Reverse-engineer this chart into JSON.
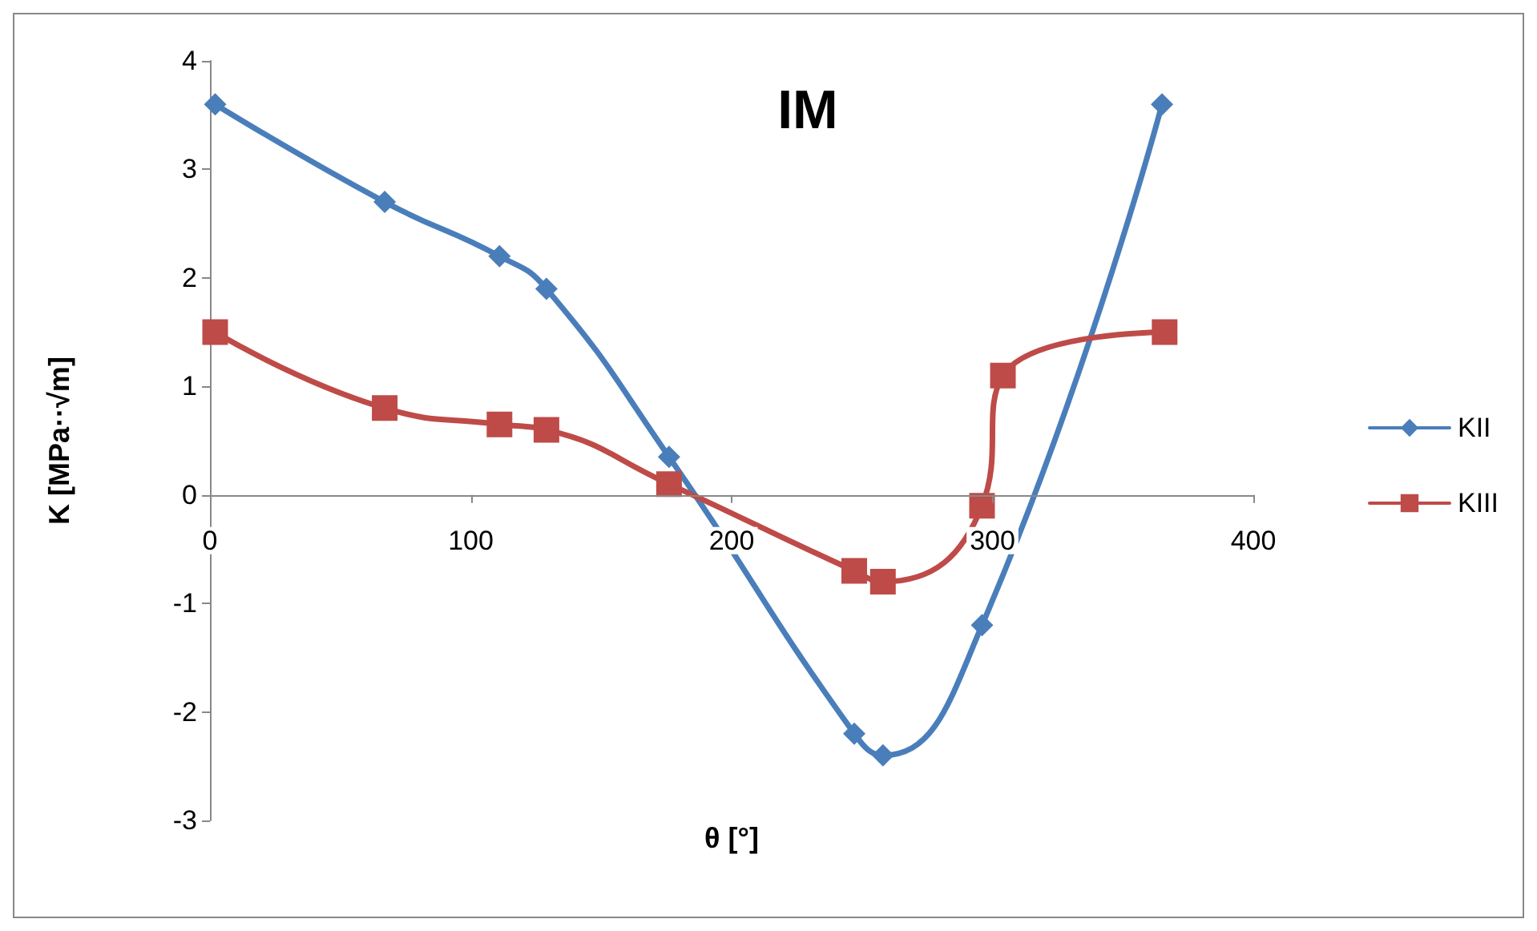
{
  "chart_data": {
    "type": "line",
    "title": "IM",
    "xlabel": "θ [°]",
    "ylabel": "K [MPa··√m]",
    "xlim": [
      0,
      400
    ],
    "xticks": [
      0,
      100,
      200,
      300,
      400
    ],
    "ylim": [
      -3,
      4
    ],
    "yticks": [
      -3,
      -2,
      -1,
      0,
      1,
      2,
      3,
      4
    ],
    "grid": false,
    "legend": "right",
    "line_style": "solid",
    "series": [
      {
        "name": "KII",
        "color": "#4a7ebb",
        "marker": "diamond",
        "x": [
          2,
          67,
          111,
          129,
          176,
          247,
          258,
          296,
          365
        ],
        "values": [
          3.6,
          2.7,
          2.2,
          1.9,
          0.35,
          -2.2,
          -2.4,
          -1.2,
          3.6
        ]
      },
      {
        "name": "KIII",
        "color": "#be4b48",
        "marker": "square",
        "x": [
          2,
          67,
          111,
          129,
          176,
          247,
          258,
          296,
          304,
          366
        ],
        "values": [
          1.5,
          0.8,
          0.65,
          0.6,
          0.1,
          -0.7,
          -0.8,
          -0.1,
          1.1,
          1.5
        ]
      }
    ]
  }
}
